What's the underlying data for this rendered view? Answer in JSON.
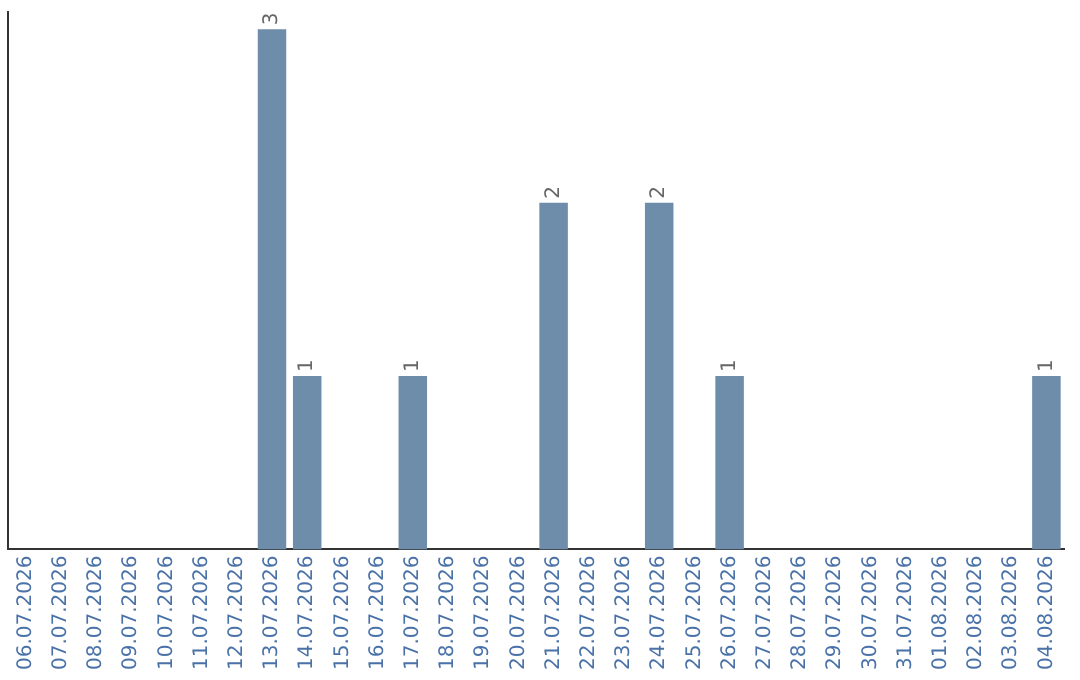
{
  "chart_data": {
    "type": "bar",
    "categories": [
      "06.07.2026",
      "07.07.2026",
      "08.07.2026",
      "09.07.2026",
      "10.07.2026",
      "11.07.2026",
      "12.07.2026",
      "13.07.2026",
      "14.07.2026",
      "15.07.2026",
      "16.07.2026",
      "17.07.2026",
      "18.07.2026",
      "19.07.2026",
      "20.07.2026",
      "21.07.2026",
      "22.07.2026",
      "23.07.2026",
      "24.07.2026",
      "25.07.2026",
      "26.07.2026",
      "27.07.2026",
      "28.07.2026",
      "29.07.2026",
      "30.07.2026",
      "31.07.2026",
      "01.08.2026",
      "02.08.2026",
      "03.08.2026",
      "04.08.2026"
    ],
    "values": [
      0,
      0,
      0,
      0,
      0,
      0,
      0,
      3,
      1,
      0,
      0,
      1,
      0,
      0,
      0,
      2,
      0,
      0,
      2,
      0,
      1,
      0,
      0,
      0,
      0,
      0,
      0,
      0,
      0,
      1
    ],
    "value_labels": [
      null,
      null,
      null,
      null,
      null,
      null,
      null,
      "3",
      "1",
      null,
      null,
      "1",
      null,
      null,
      null,
      "2",
      null,
      null,
      "2",
      null,
      "1",
      null,
      null,
      null,
      null,
      null,
      null,
      null,
      null,
      "1"
    ],
    "color": "#6d8dab",
    "ylim": [
      0,
      3.1
    ],
    "tick_labels": "x",
    "grid": false,
    "legend": false
  }
}
